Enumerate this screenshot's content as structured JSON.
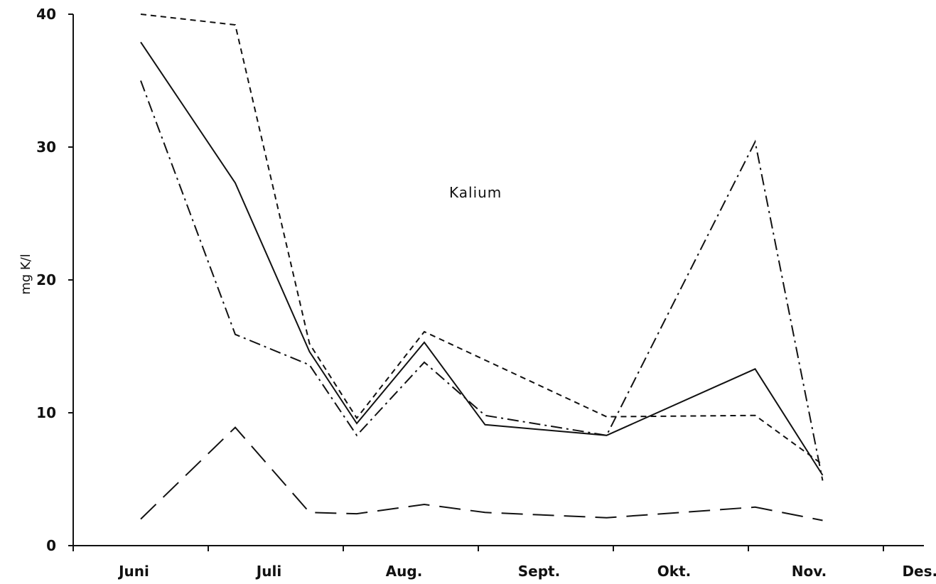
{
  "chart_data": {
    "type": "line",
    "title": "",
    "annotation": "Kalium",
    "ylabel": "mg K/l",
    "xlabel": "",
    "ylim": [
      0,
      40
    ],
    "yticks": [
      "0",
      "10",
      "20",
      "30",
      "40"
    ],
    "xlim": [
      0,
      6.3
    ],
    "month_labels": [
      "Juni",
      "Juli",
      "Aug.",
      "Sept.",
      "Okt.",
      "Nov.",
      "Des."
    ],
    "grid": false,
    "legend": "none",
    "series": [
      {
        "style": "solid",
        "color": "#111111",
        "points": [
          [
            0.5,
            37.9
          ],
          [
            1.2,
            27.3
          ],
          [
            1.75,
            14.6
          ],
          [
            2.1,
            9.2
          ],
          [
            2.6,
            15.3
          ],
          [
            3.05,
            9.1
          ],
          [
            3.95,
            8.3
          ],
          [
            5.05,
            13.3
          ],
          [
            5.55,
            5.3
          ]
        ]
      },
      {
        "style": "short-dash",
        "color": "#111111",
        "points": [
          [
            0.5,
            40.0
          ],
          [
            1.2,
            39.2
          ],
          [
            1.75,
            15.2
          ],
          [
            2.1,
            9.6
          ],
          [
            2.6,
            16.1
          ],
          [
            3.95,
            9.7
          ],
          [
            5.05,
            9.8
          ],
          [
            5.55,
            6.1
          ]
        ]
      },
      {
        "style": "dash-dot",
        "color": "#111111",
        "points": [
          [
            0.5,
            35.0
          ],
          [
            1.2,
            15.9
          ],
          [
            1.75,
            13.6
          ],
          [
            2.1,
            8.3
          ],
          [
            2.6,
            13.8
          ],
          [
            3.05,
            9.8
          ],
          [
            3.95,
            8.3
          ],
          [
            5.05,
            30.4
          ],
          [
            5.55,
            4.9
          ]
        ]
      },
      {
        "style": "long-dash",
        "color": "#111111",
        "points": [
          [
            0.5,
            2.0
          ],
          [
            1.2,
            8.9
          ],
          [
            1.75,
            2.5
          ],
          [
            2.1,
            2.4
          ],
          [
            2.6,
            3.1
          ],
          [
            3.05,
            2.5
          ],
          [
            3.95,
            2.1
          ],
          [
            5.05,
            2.9
          ],
          [
            5.55,
            1.9
          ]
        ]
      }
    ]
  }
}
